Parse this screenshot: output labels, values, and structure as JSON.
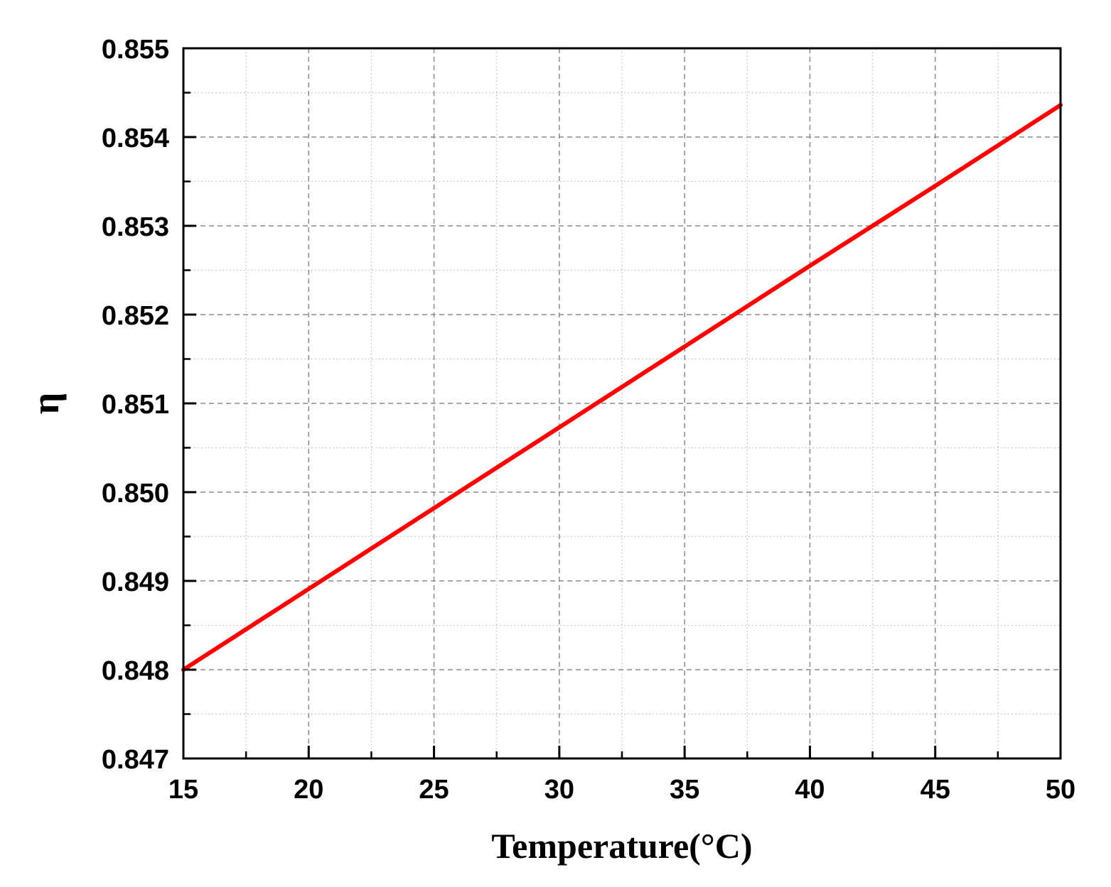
{
  "chart_data": {
    "type": "line",
    "title": "",
    "xlabel": "Temperature(°C)",
    "ylabel": "η",
    "xlim": [
      15,
      50
    ],
    "ylim": [
      0.847,
      0.855
    ],
    "xticks": [
      "15",
      "20",
      "25",
      "30",
      "35",
      "40",
      "45",
      "50"
    ],
    "yticks": [
      "0.847",
      "0.848",
      "0.849",
      "0.850",
      "0.851",
      "0.852",
      "0.853",
      "0.854",
      "0.855"
    ],
    "grid": true,
    "legend": "none",
    "series": [
      {
        "color": "#ff0000",
        "x": [
          15,
          20,
          25,
          30,
          35,
          40,
          45,
          50
        ],
        "y": [
          0.848,
          0.84891,
          0.84982,
          0.85073,
          0.85164,
          0.85255,
          0.85345,
          0.85436
        ]
      }
    ]
  }
}
